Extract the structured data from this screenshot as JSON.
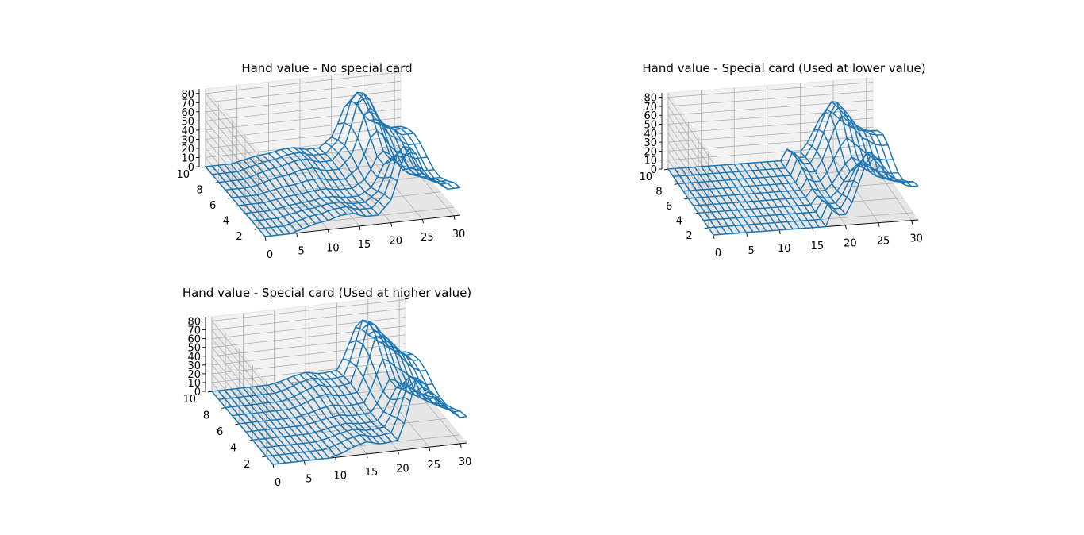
{
  "chart_data": [
    {
      "type": "surface",
      "title": "Hand value - No special card",
      "xlabel": "",
      "ylabel": "",
      "zlabel": "",
      "x_ticks": [
        0,
        5,
        10,
        15,
        20,
        25,
        30
      ],
      "y_ticks": [
        2,
        4,
        6,
        8,
        10
      ],
      "z_ticks": [
        0,
        10,
        20,
        30,
        40,
        50,
        60,
        70,
        80
      ],
      "xlim": [
        0,
        31
      ],
      "ylim": [
        1,
        10
      ],
      "zlim": [
        0,
        85
      ],
      "grid": true,
      "wireframe_color": "#1f77b4",
      "surface_profile": {
        "x": [
          0,
          4,
          5,
          8,
          10,
          12,
          14,
          15,
          16,
          18,
          20,
          21,
          22,
          23,
          24,
          25,
          26,
          27,
          28,
          29,
          30
        ],
        "z": [
          0,
          0,
          2,
          8,
          10,
          14,
          15,
          12,
          10,
          10,
          25,
          45,
          70,
          80,
          72,
          55,
          45,
          40,
          35,
          30,
          30
        ]
      }
    },
    {
      "type": "surface",
      "title": "Hand value - Special card (Used at lower value)",
      "xlabel": "",
      "ylabel": "",
      "zlabel": "",
      "x_ticks": [
        0,
        5,
        10,
        15,
        20,
        25,
        30
      ],
      "y_ticks": [
        2,
        4,
        6,
        8,
        10
      ],
      "z_ticks": [
        0,
        10,
        20,
        30,
        40,
        50,
        60,
        70,
        80
      ],
      "xlim": [
        0,
        31
      ],
      "ylim": [
        1,
        10
      ],
      "zlim": [
        0,
        85
      ],
      "grid": true,
      "wireframe_color": "#1f77b4",
      "surface_profile": {
        "x": [
          0,
          17,
          18,
          19,
          20,
          21,
          22,
          23,
          24,
          25,
          26,
          27,
          28,
          29,
          30
        ],
        "z": [
          0,
          0,
          18,
          12,
          12,
          25,
          45,
          65,
          78,
          70,
          60,
          50,
          45,
          40,
          38
        ]
      }
    },
    {
      "type": "surface",
      "title": "Hand value - Special card (Used at higher value)",
      "xlabel": "",
      "ylabel": "",
      "zlabel": "",
      "x_ticks": [
        0,
        5,
        10,
        15,
        20,
        25,
        30
      ],
      "y_ticks": [
        2,
        4,
        6,
        8,
        10
      ],
      "z_ticks": [
        0,
        10,
        20,
        30,
        40,
        50,
        60,
        70,
        80
      ],
      "xlim": [
        0,
        31
      ],
      "ylim": [
        1,
        10
      ],
      "zlim": [
        0,
        85
      ],
      "grid": true,
      "wireframe_color": "#1f77b4",
      "surface_profile": {
        "x": [
          0,
          9,
          11,
          13,
          14,
          15,
          16,
          17,
          18,
          20,
          21,
          22,
          23,
          24,
          25,
          26,
          27,
          28,
          29,
          30
        ],
        "z": [
          0,
          0,
          4,
          10,
          12,
          14,
          12,
          10,
          10,
          12,
          30,
          55,
          80,
          75,
          65,
          58,
          50,
          42,
          35,
          30
        ]
      }
    }
  ]
}
